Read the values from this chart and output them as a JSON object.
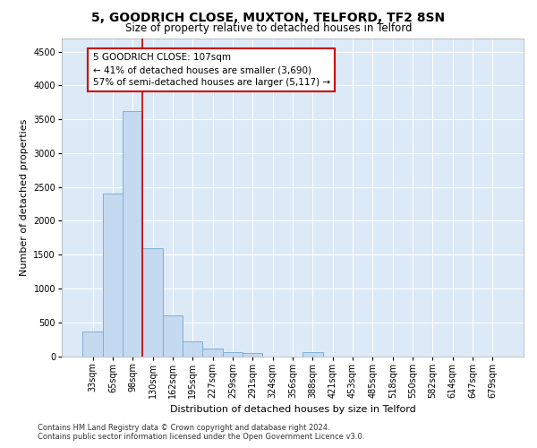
{
  "title": "5, GOODRICH CLOSE, MUXTON, TELFORD, TF2 8SN",
  "subtitle": "Size of property relative to detached houses in Telford",
  "xlabel": "Distribution of detached houses by size in Telford",
  "ylabel": "Number of detached properties",
  "categories": [
    "33sqm",
    "65sqm",
    "98sqm",
    "130sqm",
    "162sqm",
    "195sqm",
    "227sqm",
    "259sqm",
    "291sqm",
    "324sqm",
    "356sqm",
    "388sqm",
    "421sqm",
    "453sqm",
    "485sqm",
    "518sqm",
    "550sqm",
    "582sqm",
    "614sqm",
    "647sqm",
    "679sqm"
  ],
  "values": [
    370,
    2400,
    3620,
    1590,
    600,
    225,
    110,
    65,
    45,
    0,
    0,
    60,
    0,
    0,
    0,
    0,
    0,
    0,
    0,
    0,
    0
  ],
  "bar_color": "#c5d9f0",
  "bar_edge_color": "#7eb0d5",
  "vline_color": "#cc0000",
  "annotation_line1": "5 GOODRICH CLOSE: 107sqm",
  "annotation_line2": "← 41% of detached houses are smaller (3,690)",
  "annotation_line3": "57% of semi-detached houses are larger (5,117) →",
  "annotation_box_color": "#cc0000",
  "ylim": [
    0,
    4700
  ],
  "yticks": [
    0,
    500,
    1000,
    1500,
    2000,
    2500,
    3000,
    3500,
    4000,
    4500
  ],
  "bg_color": "#dce9f7",
  "grid_color": "#ffffff",
  "footer": "Contains HM Land Registry data © Crown copyright and database right 2024.\nContains public sector information licensed under the Open Government Licence v3.0.",
  "title_fontsize": 10,
  "subtitle_fontsize": 8.5,
  "xlabel_fontsize": 8,
  "ylabel_fontsize": 8,
  "tick_fontsize": 7,
  "annotation_fontsize": 7.5,
  "footer_fontsize": 6
}
